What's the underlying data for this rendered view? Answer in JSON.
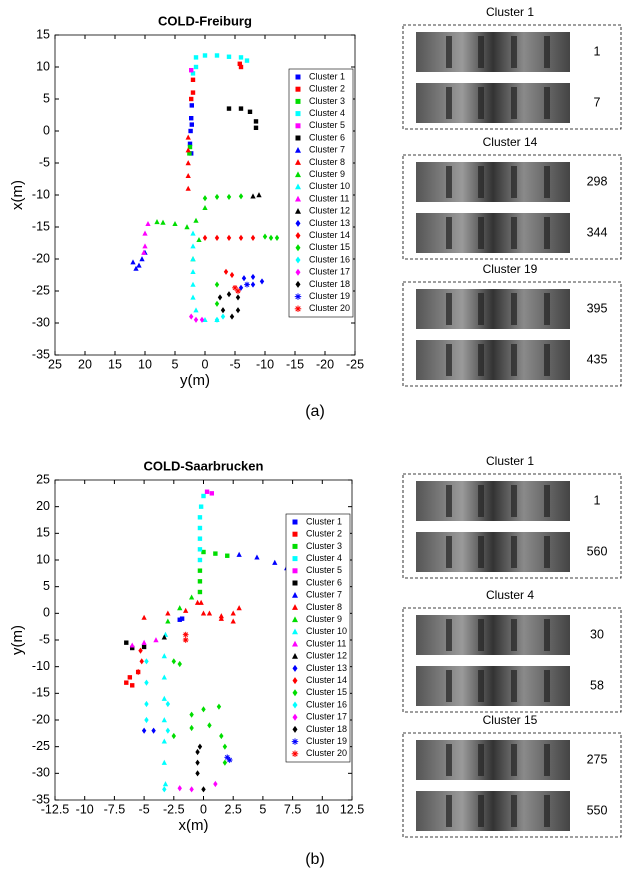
{
  "chart_data": [
    {
      "type": "scatter",
      "title": "COLD-Freiburg",
      "x_label": "y(m)",
      "y_label": "x(m)",
      "xlim": [
        25,
        -25
      ],
      "xticks": [
        25,
        20,
        15,
        10,
        5,
        0,
        -5,
        -10,
        -15,
        -20,
        -25
      ],
      "ylim": [
        -35,
        15
      ],
      "yticks": [
        -35,
        -30,
        -25,
        -20,
        -15,
        -10,
        -5,
        0,
        5,
        10,
        15
      ],
      "legend": "upper right",
      "series": [
        {
          "name": "Cluster 1",
          "color": "#0000ff",
          "marker": "square",
          "x": [
            2.2,
            2.3,
            2.4,
            2.5,
            2.3,
            2.2
          ],
          "y": [
            4,
            2,
            0,
            -2,
            -3.5,
            1
          ]
        },
        {
          "name": "Cluster 2",
          "color": "#ff0000",
          "marker": "square",
          "x": [
            2,
            2,
            2.3,
            -5.8,
            -6
          ],
          "y": [
            8,
            6,
            5,
            10.5,
            10
          ]
        },
        {
          "name": "Cluster 3",
          "color": "#00dd00",
          "marker": "square",
          "x": [
            2.5,
            2.6
          ],
          "y": [
            -2.5,
            -3.5
          ]
        },
        {
          "name": "Cluster 4",
          "color": "#00ffff",
          "marker": "square",
          "x": [
            1.5,
            0,
            -2,
            -4,
            -6,
            -7,
            1.5,
            2
          ],
          "y": [
            11.5,
            11.8,
            11.8,
            11.6,
            11.5,
            11,
            10,
            9
          ]
        },
        {
          "name": "Cluster 5",
          "color": "#ff00ff",
          "marker": "square",
          "x": [
            2.3
          ],
          "y": [
            9.5
          ]
        },
        {
          "name": "Cluster 6",
          "color": "#000000",
          "marker": "square",
          "x": [
            -4,
            -6,
            -7.5,
            -8.5,
            -8.5
          ],
          "y": [
            3.5,
            3.5,
            3,
            1.5,
            0.5
          ]
        },
        {
          "name": "Cluster 7",
          "color": "#0000ff",
          "marker": "triangle",
          "x": [
            11,
            12,
            11.5,
            10.5,
            10
          ],
          "y": [
            -21,
            -20.5,
            -21.5,
            -20,
            -19
          ]
        },
        {
          "name": "Cluster 8",
          "color": "#ff0000",
          "marker": "triangle",
          "x": [
            2.8,
            2.8,
            2.8,
            2.8,
            2.8
          ],
          "y": [
            -1,
            -3,
            -5,
            -7,
            -9
          ]
        },
        {
          "name": "Cluster 9",
          "color": "#00dd00",
          "marker": "triangle",
          "x": [
            0,
            1.5,
            3,
            5,
            7,
            8,
            1,
            2
          ],
          "y": [
            -12,
            -14,
            -15,
            -14.5,
            -14.3,
            -14.2,
            -17,
            -20
          ]
        },
        {
          "name": "Cluster 10",
          "color": "#00ffff",
          "marker": "triangle",
          "x": [
            2,
            2,
            2,
            2,
            2,
            2,
            1.5,
            0,
            -2
          ],
          "y": [
            -16,
            -18,
            -20,
            -22,
            -24,
            -26,
            -28,
            -29.5,
            -29.5
          ]
        },
        {
          "name": "Cluster 11",
          "color": "#ff00ff",
          "marker": "triangle",
          "x": [
            9.5,
            10,
            10,
            10.2
          ],
          "y": [
            -14.5,
            -16,
            -18,
            -19
          ]
        },
        {
          "name": "Cluster 12",
          "color": "#000000",
          "marker": "triangle",
          "x": [
            -8,
            -9
          ],
          "y": [
            -10.2,
            -10
          ]
        },
        {
          "name": "Cluster 13",
          "color": "#0000ff",
          "marker": "diamond",
          "x": [
            -6.5,
            -8,
            -9.5,
            -8,
            -6
          ],
          "y": [
            -23,
            -22.8,
            -23.5,
            -24,
            -24.5
          ]
        },
        {
          "name": "Cluster 14",
          "color": "#ff0000",
          "marker": "diamond",
          "x": [
            0,
            -2,
            -4,
            -6,
            -8,
            -3.5,
            -4.5
          ],
          "y": [
            -16.7,
            -16.7,
            -16.7,
            -16.7,
            -16.7,
            -22,
            -22.5
          ]
        },
        {
          "name": "Cluster 15",
          "color": "#00dd00",
          "marker": "diamond",
          "x": [
            -10,
            -11,
            -12,
            0,
            -2,
            -4,
            -6,
            -2,
            -2
          ],
          "y": [
            -16.5,
            -16.7,
            -16.7,
            -10.5,
            -10.3,
            -10.3,
            -10.2,
            -24,
            -27
          ]
        },
        {
          "name": "Cluster 16",
          "color": "#00ffff",
          "marker": "diamond",
          "x": [
            -3,
            -2
          ],
          "y": [
            -29,
            -29.5
          ]
        },
        {
          "name": "Cluster 17",
          "color": "#ff00ff",
          "marker": "diamond",
          "x": [
            2.3,
            1.5,
            0.5
          ],
          "y": [
            -29,
            -29.5,
            -29.5
          ]
        },
        {
          "name": "Cluster 18",
          "color": "#000000",
          "marker": "diamond",
          "x": [
            -2.5,
            -3,
            -4.5,
            -5.5,
            -5.5,
            -4
          ],
          "y": [
            -26,
            -28,
            -29,
            -28,
            -26,
            -25.5
          ]
        },
        {
          "name": "Cluster 19",
          "color": "#0000ff",
          "marker": "star",
          "x": [
            -7
          ],
          "y": [
            -24
          ]
        },
        {
          "name": "Cluster 20",
          "color": "#ff0000",
          "marker": "star",
          "x": [
            -5,
            -5.5
          ],
          "y": [
            -24.5,
            -25
          ]
        }
      ]
    },
    {
      "type": "scatter",
      "title": "COLD-Saarbrucken",
      "x_label": "x(m)",
      "y_label": "y(m)",
      "xlim": [
        -12.5,
        12.5
      ],
      "xticks": [
        -12.5,
        -10,
        -7.5,
        -5,
        -2.5,
        0,
        2.5,
        5,
        7.5,
        10,
        12.5
      ],
      "ylim": [
        -35,
        25
      ],
      "yticks": [
        -35,
        -30,
        -25,
        -20,
        -15,
        -10,
        -5,
        0,
        5,
        10,
        15,
        20,
        25
      ],
      "legend": "upper right",
      "series": [
        {
          "name": "Cluster 1",
          "color": "#0000ff",
          "marker": "square",
          "x": [
            -1.8,
            -2
          ],
          "y": [
            -1,
            -1.2
          ]
        },
        {
          "name": "Cluster 2",
          "color": "#ff0000",
          "marker": "square",
          "x": [
            -6,
            -6.5,
            -6.2,
            -5.5
          ],
          "y": [
            -13.5,
            -13,
            -12,
            -11
          ]
        },
        {
          "name": "Cluster 3",
          "color": "#00dd00",
          "marker": "square",
          "x": [
            0,
            1,
            2,
            -0.3,
            -0.3,
            -0.3
          ],
          "y": [
            11.5,
            11.2,
            10.8,
            8,
            6,
            4
          ]
        },
        {
          "name": "Cluster 4",
          "color": "#00ffff",
          "marker": "square",
          "x": [
            -0.3,
            -0.2,
            0,
            -0.3,
            -0.3,
            -0.3,
            -0.3
          ],
          "y": [
            18,
            20,
            22,
            16,
            14,
            12,
            10
          ]
        },
        {
          "name": "Cluster 5",
          "color": "#ff00ff",
          "marker": "square",
          "x": [
            0.3,
            0.7
          ],
          "y": [
            22.8,
            22.5
          ]
        },
        {
          "name": "Cluster 6",
          "color": "#000000",
          "marker": "square",
          "x": [
            -6.5,
            -6,
            -5
          ],
          "y": [
            -5.5,
            -6.5,
            -6.3
          ]
        },
        {
          "name": "Cluster 7",
          "color": "#0000ff",
          "marker": "triangle",
          "x": [
            3,
            4.5,
            6,
            7
          ],
          "y": [
            11,
            10.5,
            9.5,
            8.5
          ]
        },
        {
          "name": "Cluster 8",
          "color": "#ff0000",
          "marker": "triangle",
          "x": [
            -0.5,
            -1.5,
            -3,
            -5,
            0.5,
            1.5,
            2.5,
            3,
            2.5,
            1.5,
            -0.2,
            0
          ],
          "y": [
            2,
            0.5,
            0,
            -0.8,
            0,
            -1,
            0,
            1,
            -1.5,
            -0.5,
            2,
            0
          ]
        },
        {
          "name": "Cluster 9",
          "color": "#00dd00",
          "marker": "triangle",
          "x": [
            -1,
            -2,
            -3
          ],
          "y": [
            3,
            1,
            -1.5
          ]
        },
        {
          "name": "Cluster 10",
          "color": "#00ffff",
          "marker": "triangle",
          "x": [
            -3.2,
            -3.3,
            -3.3,
            -3.3,
            -3.3,
            -3.3,
            -3.3,
            -3.2
          ],
          "y": [
            -4,
            -8,
            -12,
            -16,
            -20,
            -24,
            -28,
            -32
          ]
        },
        {
          "name": "Cluster 11",
          "color": "#ff00ff",
          "marker": "triangle",
          "x": [
            -4,
            -5,
            -6
          ],
          "y": [
            -5,
            -5.5,
            -6
          ]
        },
        {
          "name": "Cluster 12",
          "color": "#000000",
          "marker": "triangle",
          "x": [
            -3.3
          ],
          "y": [
            -4.5
          ]
        },
        {
          "name": "Cluster 13",
          "color": "#0000ff",
          "marker": "diamond",
          "x": [
            -5,
            -4.2
          ],
          "y": [
            -22,
            -22
          ]
        },
        {
          "name": "Cluster 14",
          "color": "#ff0000",
          "marker": "diamond",
          "x": [
            -5.3,
            -5.2,
            -5.5
          ],
          "y": [
            -7,
            -9,
            -11
          ]
        },
        {
          "name": "Cluster 15",
          "color": "#00dd00",
          "marker": "diamond",
          "x": [
            -2.5,
            -2,
            -1,
            0,
            1.3,
            -2.5,
            -1,
            0.5,
            1.5,
            1.8,
            1.8
          ],
          "y": [
            -9,
            -9.5,
            -19,
            -18,
            -17.5,
            -23,
            -21.5,
            -21,
            -23,
            -25,
            -28
          ]
        },
        {
          "name": "Cluster 16",
          "color": "#00ffff",
          "marker": "diamond",
          "x": [
            -3,
            -3,
            -3.3,
            -4.8,
            -4.8,
            -4.8,
            -4.8
          ],
          "y": [
            -17,
            -22,
            -33,
            -9,
            -13,
            -17,
            -20
          ]
        },
        {
          "name": "Cluster 17",
          "color": "#ff00ff",
          "marker": "diamond",
          "x": [
            -2,
            -1,
            1
          ],
          "y": [
            -32.8,
            -33,
            -32
          ]
        },
        {
          "name": "Cluster 18",
          "color": "#000000",
          "marker": "diamond",
          "x": [
            -0.5,
            -0.5,
            -0.5,
            0,
            -0.3
          ],
          "y": [
            -26,
            -28,
            -30,
            -33,
            -25
          ]
        },
        {
          "name": "Cluster 19",
          "color": "#0000ff",
          "marker": "star",
          "x": [
            2,
            2.2
          ],
          "y": [
            -27,
            -27.5
          ]
        },
        {
          "name": "Cluster 20",
          "color": "#ff0000",
          "marker": "star",
          "x": [
            -1.5,
            -1.5
          ],
          "y": [
            -4,
            -5
          ]
        }
      ]
    }
  ],
  "panels": [
    {
      "caption": "(a)",
      "groups": [
        {
          "title": "Cluster 1",
          "frames": [
            1,
            7
          ]
        },
        {
          "title": "Cluster 14",
          "frames": [
            298,
            344
          ]
        },
        {
          "title": "Cluster 19",
          "frames": [
            395,
            435
          ]
        }
      ]
    },
    {
      "caption": "(b)",
      "groups": [
        {
          "title": "Cluster 1",
          "frames": [
            1,
            560
          ]
        },
        {
          "title": "Cluster 4",
          "frames": [
            30,
            58
          ]
        },
        {
          "title": "Cluster 15",
          "frames": [
            275,
            550
          ]
        }
      ]
    }
  ]
}
